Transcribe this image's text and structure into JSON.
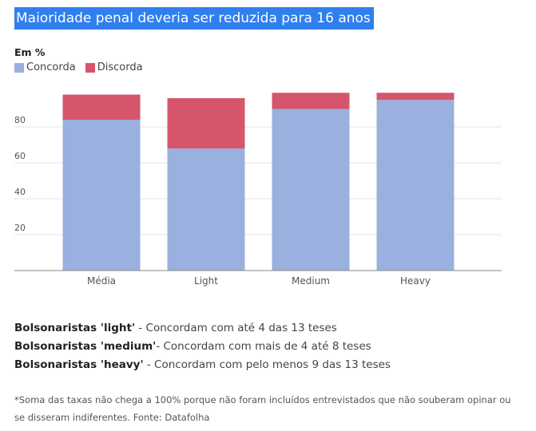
{
  "title": "Maioridade penal deveria ser reduzida para 16 anos",
  "unit_label": "Em %",
  "legend": [
    {
      "label": "Concorda",
      "color": "#9ab0de"
    },
    {
      "label": "Discorda",
      "color": "#d5566b"
    }
  ],
  "chart_data": {
    "type": "bar",
    "stacked": true,
    "categories": [
      "Média",
      "Light",
      "Medium",
      "Heavy"
    ],
    "series": [
      {
        "name": "Concorda",
        "color": "#9ab0de",
        "values": [
          84,
          68,
          90,
          95
        ]
      },
      {
        "name": "Discorda",
        "color": "#d5566b",
        "values": [
          14,
          28,
          9,
          4
        ]
      }
    ],
    "ylim": [
      0,
      100
    ],
    "yticks": [
      20,
      40,
      60,
      80
    ],
    "grid": true,
    "legend_position": "top-left"
  },
  "notes": [
    {
      "term": "Bolsonaristas 'light'",
      "desc": " - Concordam com até 4 das 13 teses"
    },
    {
      "term": "Bolsonaristas 'medium'",
      "desc": "- Concordam com mais de 4 até 8 teses"
    },
    {
      "term": "Bolsonaristas 'heavy'",
      "desc": " - Concordam com pelo menos 9 das 13 teses"
    }
  ],
  "footnote": "*Soma das taxas não chega a 100% porque não foram incluídos entrevistados que não souberam opinar ou se disseram indiferentes. Fonte: Datafolha"
}
